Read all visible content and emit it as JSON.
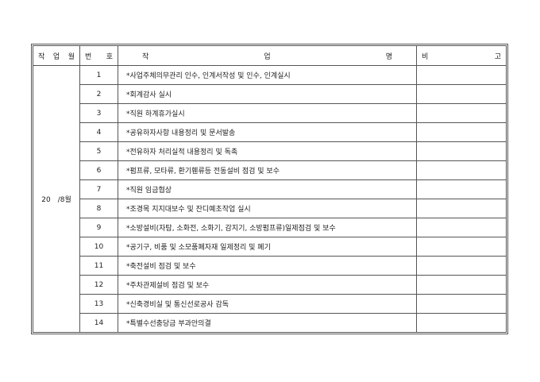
{
  "header": {
    "month": [
      "작",
      "업",
      "월"
    ],
    "number": [
      "번",
      "호"
    ],
    "task": [
      "작",
      "업",
      "명"
    ],
    "remark": [
      "비",
      "고"
    ]
  },
  "month_value": "20　/8월",
  "rows": [
    {
      "no": "1",
      "task": "*사업주체의무관리 인수, 인계서작성 및 인수, 인계실시",
      "remark": ""
    },
    {
      "no": "2",
      "task": "*회계감사 실시",
      "remark": ""
    },
    {
      "no": "3",
      "task": "*직원 하계휴가실시",
      "remark": ""
    },
    {
      "no": "4",
      "task": "*공유하자사항 내용정리 및 문서발송",
      "remark": ""
    },
    {
      "no": "5",
      "task": "*전유하자 처리실적 내용정리 및 독촉",
      "remark": ""
    },
    {
      "no": "6",
      "task": "*펌프류, 모타류, 환기휀류등 전동설비 점검 및 보수",
      "remark": ""
    },
    {
      "no": "7",
      "task": "*직원 임금협상",
      "remark": ""
    },
    {
      "no": "8",
      "task": "*조경목 지지대보수 및 잔디예초작업 실시",
      "remark": ""
    },
    {
      "no": "9",
      "task": "*소방설비(자탐, 소화전, 소화기, 감지기, 소방펌프류)일제점검 및 보수",
      "remark": ""
    },
    {
      "no": "10",
      "task": "*공기구, 비품 및 소모품폐자재 일제정리 및 폐기",
      "remark": ""
    },
    {
      "no": "11",
      "task": "*축전설비 점검 및 보수",
      "remark": ""
    },
    {
      "no": "12",
      "task": "*주차관제설비 점검 및 보수",
      "remark": ""
    },
    {
      "no": "13",
      "task": "*신축경비실 및 통신선로공사 감독",
      "remark": ""
    },
    {
      "no": "14",
      "task": "*특별수선충당금 부과안의결",
      "remark": ""
    }
  ]
}
